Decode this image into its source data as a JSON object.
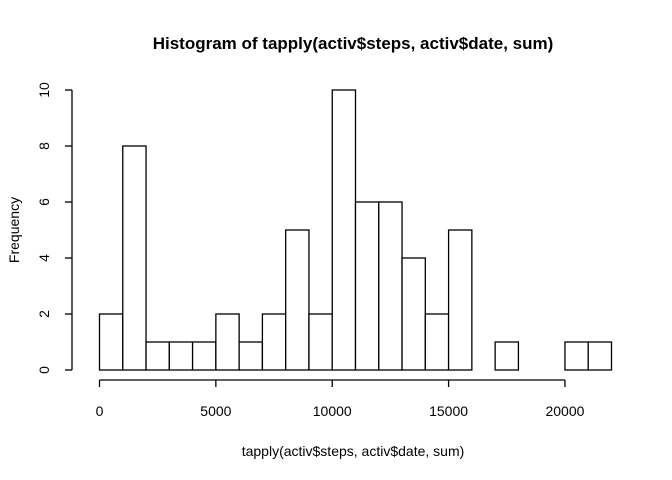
{
  "chart_data": {
    "type": "bar",
    "title": "Histogram of tapply(activ$steps, activ$date, sum)",
    "xlabel": "tapply(activ$steps, activ$date, sum)",
    "ylabel": "Frequency",
    "bin_width": 1000,
    "bins": [
      {
        "start": 0,
        "end": 1000,
        "count": 2
      },
      {
        "start": 1000,
        "end": 2000,
        "count": 8
      },
      {
        "start": 2000,
        "end": 3000,
        "count": 1
      },
      {
        "start": 3000,
        "end": 4000,
        "count": 1
      },
      {
        "start": 4000,
        "end": 5000,
        "count": 1
      },
      {
        "start": 5000,
        "end": 6000,
        "count": 2
      },
      {
        "start": 6000,
        "end": 7000,
        "count": 1
      },
      {
        "start": 7000,
        "end": 8000,
        "count": 2
      },
      {
        "start": 8000,
        "end": 9000,
        "count": 5
      },
      {
        "start": 9000,
        "end": 10000,
        "count": 2
      },
      {
        "start": 10000,
        "end": 11000,
        "count": 10
      },
      {
        "start": 11000,
        "end": 12000,
        "count": 6
      },
      {
        "start": 12000,
        "end": 13000,
        "count": 6
      },
      {
        "start": 13000,
        "end": 14000,
        "count": 4
      },
      {
        "start": 14000,
        "end": 15000,
        "count": 2
      },
      {
        "start": 15000,
        "end": 16000,
        "count": 5
      },
      {
        "start": 16000,
        "end": 17000,
        "count": 0
      },
      {
        "start": 17000,
        "end": 18000,
        "count": 1
      },
      {
        "start": 18000,
        "end": 19000,
        "count": 0
      },
      {
        "start": 19000,
        "end": 20000,
        "count": 0
      },
      {
        "start": 20000,
        "end": 21000,
        "count": 1
      },
      {
        "start": 21000,
        "end": 22000,
        "count": 1
      }
    ],
    "xlim": [
      0,
      22000
    ],
    "ylim": [
      0,
      10
    ],
    "xticks": [
      0,
      5000,
      10000,
      15000,
      20000
    ],
    "yticks": [
      0,
      2,
      4,
      6,
      8,
      10
    ],
    "grid": false,
    "legend": "none",
    "colors": {
      "bar_fill": "#ffffff",
      "bar_stroke": "#000000"
    }
  }
}
